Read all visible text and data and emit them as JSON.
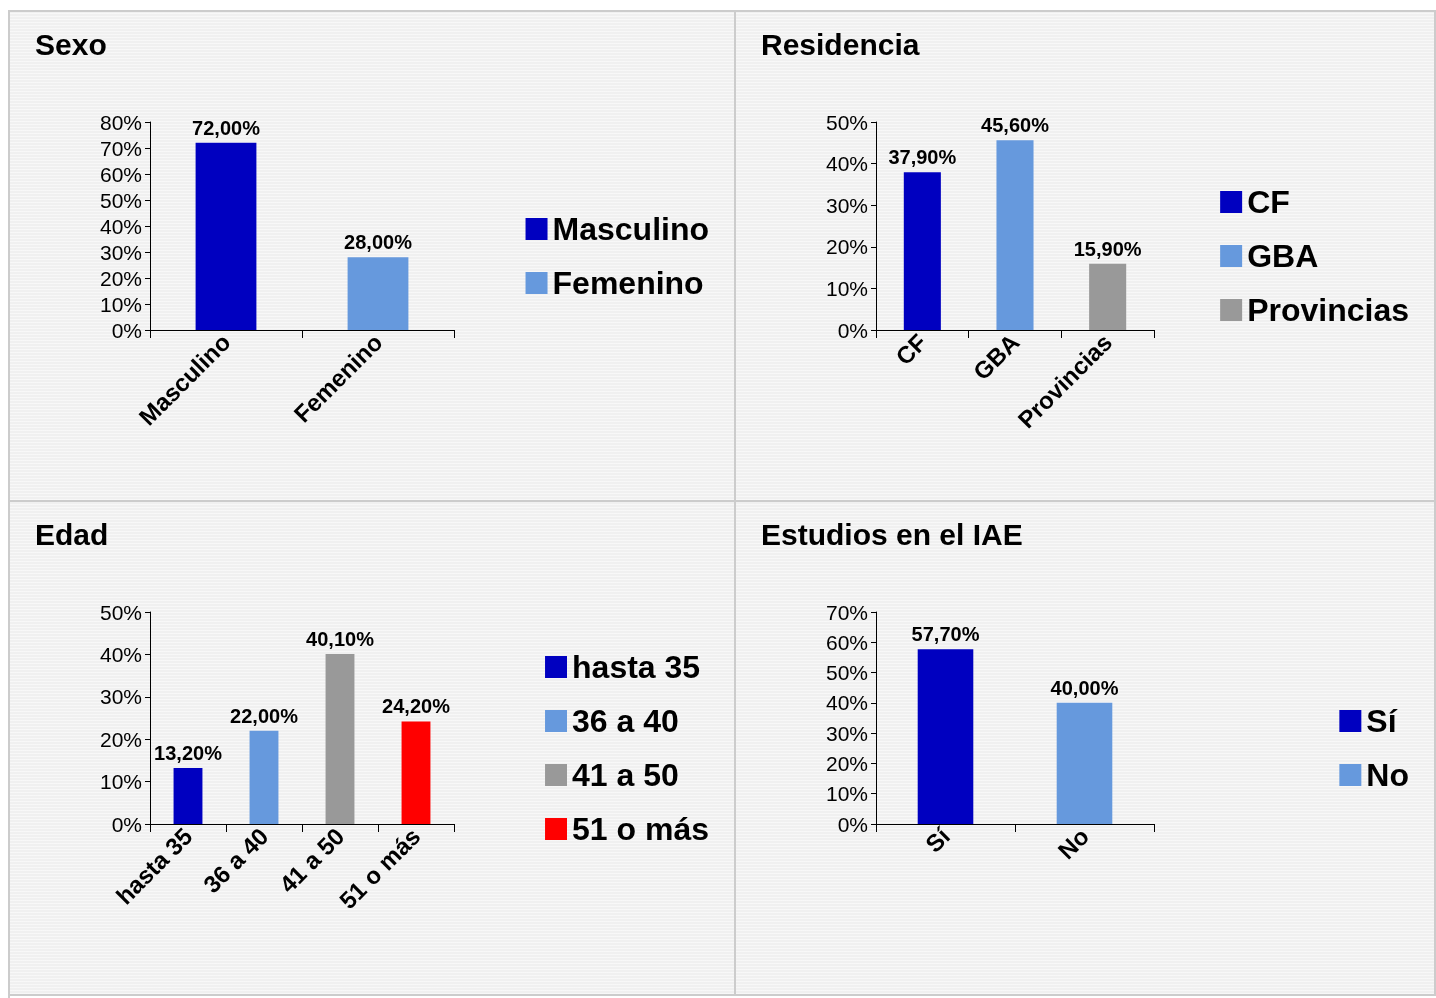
{
  "chart_data": [
    {
      "type": "bar",
      "title": "Sexo",
      "categories": [
        "Masculino",
        "Femenino"
      ],
      "series": [
        {
          "name": "Masculino",
          "color": "#0000c0",
          "values": [
            72.0,
            null
          ],
          "value_labels": [
            "72,00%",
            null
          ]
        },
        {
          "name": "Femenino",
          "color": "#6699dd",
          "values": [
            null,
            28.0
          ],
          "value_labels": [
            null,
            "28,00%"
          ]
        }
      ],
      "ylim": [
        0,
        80
      ],
      "yticks": [
        {
          "value": 0,
          "label": "0%"
        },
        {
          "value": 10,
          "label": "10%"
        },
        {
          "value": 20,
          "label": "20%"
        },
        {
          "value": 30,
          "label": "30%"
        },
        {
          "value": 40,
          "label": "40%"
        },
        {
          "value": 50,
          "label": "50%"
        },
        {
          "value": 60,
          "label": "60%"
        },
        {
          "value": 70,
          "label": "70%"
        },
        {
          "value": 80,
          "label": "80%"
        }
      ],
      "legend": "right",
      "grid": false
    },
    {
      "type": "bar",
      "title": "Residencia",
      "categories": [
        "CF",
        "GBA",
        "Provincias"
      ],
      "series": [
        {
          "name": "CF",
          "color": "#0000c0",
          "values": [
            37.9,
            null,
            null
          ],
          "value_labels": [
            "37,90%",
            null,
            null
          ]
        },
        {
          "name": "GBA",
          "color": "#6699dd",
          "values": [
            null,
            45.6,
            null
          ],
          "value_labels": [
            null,
            "45,60%",
            null
          ]
        },
        {
          "name": "Provincias",
          "color": "#999999",
          "values": [
            null,
            null,
            15.9
          ],
          "value_labels": [
            null,
            null,
            "15,90%"
          ]
        }
      ],
      "ylim": [
        0,
        50
      ],
      "yticks": [
        {
          "value": 0,
          "label": "0%"
        },
        {
          "value": 10,
          "label": "10%"
        },
        {
          "value": 20,
          "label": "20%"
        },
        {
          "value": 30,
          "label": "30%"
        },
        {
          "value": 40,
          "label": "40%"
        },
        {
          "value": 50,
          "label": "50%"
        }
      ],
      "legend": "right",
      "grid": false
    },
    {
      "type": "bar",
      "title": "Edad",
      "categories": [
        "hasta 35",
        "36 a 40",
        "41 a 50",
        "51 o más"
      ],
      "series": [
        {
          "name": "hasta 35",
          "color": "#0000c0",
          "values": [
            13.2,
            null,
            null,
            null
          ],
          "value_labels": [
            "13,20%",
            null,
            null,
            null
          ]
        },
        {
          "name": "36 a 40",
          "color": "#6699dd",
          "values": [
            null,
            22.0,
            null,
            null
          ],
          "value_labels": [
            null,
            "22,00%",
            null,
            null
          ]
        },
        {
          "name": "41 a 50",
          "color": "#999999",
          "values": [
            null,
            null,
            40.1,
            null
          ],
          "value_labels": [
            null,
            null,
            "40,10%",
            null
          ]
        },
        {
          "name": "51 o más",
          "color": "#ff0000",
          "values": [
            null,
            null,
            null,
            24.2
          ],
          "value_labels": [
            null,
            null,
            null,
            "24,20%"
          ]
        }
      ],
      "ylim": [
        0,
        50
      ],
      "yticks": [
        {
          "value": 0,
          "label": "0%"
        },
        {
          "value": 10,
          "label": "10%"
        },
        {
          "value": 20,
          "label": "20%"
        },
        {
          "value": 30,
          "label": "30%"
        },
        {
          "value": 40,
          "label": "40%"
        },
        {
          "value": 50,
          "label": "50%"
        }
      ],
      "legend": "right",
      "grid": false
    },
    {
      "type": "bar",
      "title": "Estudios en el IAE",
      "categories": [
        "Sí",
        "No"
      ],
      "series": [
        {
          "name": "Sí",
          "color": "#0000c0",
          "values": [
            57.7,
            null
          ],
          "value_labels": [
            "57,70%",
            null
          ]
        },
        {
          "name": "No",
          "color": "#6699dd",
          "values": [
            null,
            40.0
          ],
          "value_labels": [
            null,
            "40,00%"
          ]
        }
      ],
      "ylim": [
        0,
        70
      ],
      "yticks": [
        {
          "value": 0,
          "label": "0%"
        },
        {
          "value": 10,
          "label": "10%"
        },
        {
          "value": 20,
          "label": "20%"
        },
        {
          "value": 30,
          "label": "30%"
        },
        {
          "value": 40,
          "label": "40%"
        },
        {
          "value": 50,
          "label": "50%"
        },
        {
          "value": 60,
          "label": "60%"
        },
        {
          "value": 70,
          "label": "70%"
        }
      ],
      "legend": "right",
      "grid": false
    }
  ]
}
